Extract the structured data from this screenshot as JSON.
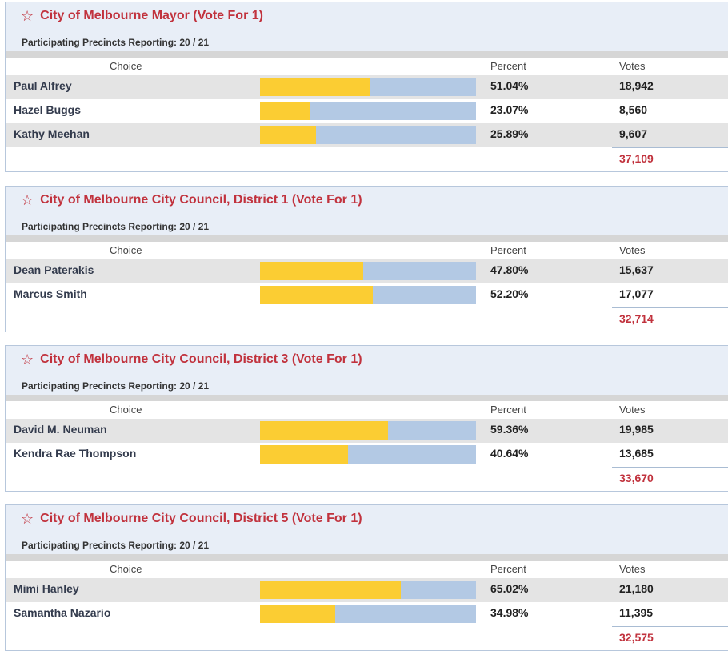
{
  "races": [
    {
      "title": "City of Melbourne Mayor (Vote For 1)",
      "precincts": "Participating Precincts Reporting: 20 / 21",
      "columns": {
        "choice": "Choice",
        "percent": "Percent",
        "votes": "Votes"
      },
      "candidates": [
        {
          "name": "Paul Alfrey",
          "percent": "51.04%",
          "votes": "18,942",
          "share": 0.5104
        },
        {
          "name": "Hazel Buggs",
          "percent": "23.07%",
          "votes": "8,560",
          "share": 0.2307
        },
        {
          "name": "Kathy Meehan",
          "percent": "25.89%",
          "votes": "9,607",
          "share": 0.2589
        }
      ],
      "total": "37,109"
    },
    {
      "title": "City of Melbourne City Council, District 1 (Vote For 1)",
      "precincts": "Participating Precincts Reporting: 20 / 21",
      "columns": {
        "choice": "Choice",
        "percent": "Percent",
        "votes": "Votes"
      },
      "candidates": [
        {
          "name": "Dean Paterakis",
          "percent": "47.80%",
          "votes": "15,637",
          "share": 0.478
        },
        {
          "name": "Marcus Smith",
          "percent": "52.20%",
          "votes": "17,077",
          "share": 0.522
        }
      ],
      "total": "32,714"
    },
    {
      "title": "City of Melbourne City Council, District 3 (Vote For 1)",
      "precincts": "Participating Precincts Reporting: 20 / 21",
      "columns": {
        "choice": "Choice",
        "percent": "Percent",
        "votes": "Votes"
      },
      "candidates": [
        {
          "name": "David M. Neuman",
          "percent": "59.36%",
          "votes": "19,985",
          "share": 0.5936
        },
        {
          "name": "Kendra Rae Thompson",
          "percent": "40.64%",
          "votes": "13,685",
          "share": 0.4064
        }
      ],
      "total": "33,670"
    },
    {
      "title": "City of Melbourne City Council, District 5 (Vote For 1)",
      "precincts": "Participating Precincts Reporting: 20 / 21",
      "columns": {
        "choice": "Choice",
        "percent": "Percent",
        "votes": "Votes"
      },
      "candidates": [
        {
          "name": "Mimi Hanley",
          "percent": "65.02%",
          "votes": "21,180",
          "share": 0.6502
        },
        {
          "name": "Samantha Nazario",
          "percent": "34.98%",
          "votes": "11,395",
          "share": 0.3498
        }
      ],
      "total": "32,575"
    }
  ],
  "icons": {
    "favorite": "star-outline-icon",
    "star_glyph": "☆"
  },
  "colors": {
    "title_red": "#c1323d",
    "bar_fill_yellow": "#fbcd33",
    "bar_track_blue": "#b3c9e4",
    "header_bg": "#e8eef7",
    "alt_row_gray": "#e4e4e4"
  }
}
